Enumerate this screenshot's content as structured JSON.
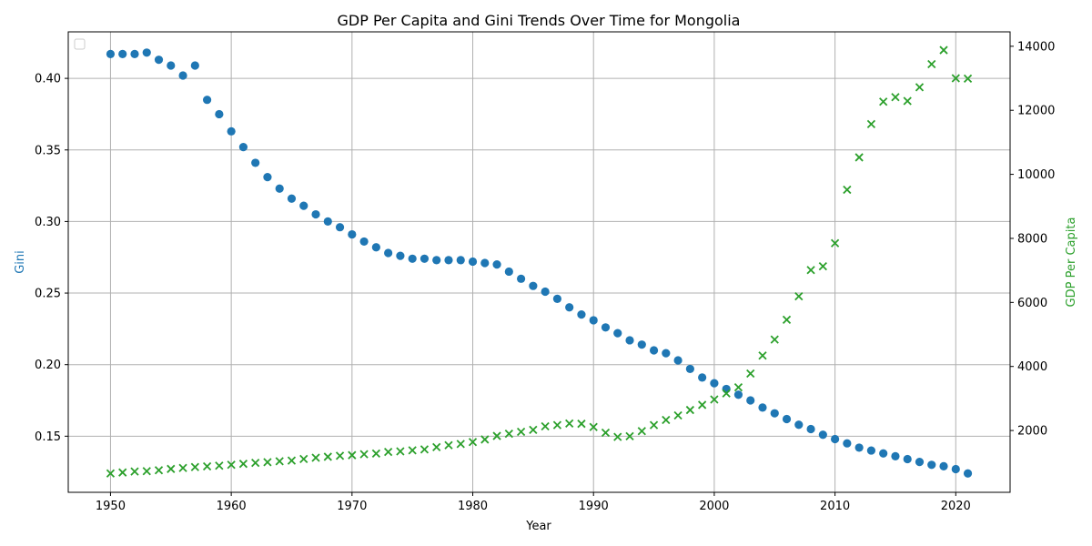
{
  "chart_data": {
    "type": "scatter",
    "title": "GDP Per Capita and Gini Trends Over Time for Mongolia",
    "xlabel": "Year",
    "ylabel_left": "Gini",
    "ylabel_right": "GDP Per Capita",
    "xlim": [
      1946.5,
      2024.5
    ],
    "ylim_left": [
      0.1108,
      0.4325
    ],
    "ylim_right": [
      70,
      14450
    ],
    "x_ticks": [
      1950,
      1960,
      1970,
      1980,
      1990,
      2000,
      2010,
      2020
    ],
    "y_left_ticks": [
      0.15,
      0.2,
      0.25,
      0.3,
      0.35,
      0.4
    ],
    "y_left_tick_labels": [
      "0.15",
      "0.20",
      "0.25",
      "0.30",
      "0.35",
      "0.40"
    ],
    "y_right_ticks": [
      2000,
      4000,
      6000,
      8000,
      10000,
      12000,
      14000
    ],
    "y_right_tick_labels": [
      "2000",
      "4000",
      "6000",
      "8000",
      "10000",
      "12000",
      "14000"
    ],
    "grid": true,
    "legend": "top-left (empty)",
    "colors": {
      "gini": "#1f77b4",
      "gdp": "#2ca02c"
    },
    "x": [
      1950,
      1951,
      1952,
      1953,
      1954,
      1955,
      1956,
      1957,
      1958,
      1959,
      1960,
      1961,
      1962,
      1963,
      1964,
      1965,
      1966,
      1967,
      1968,
      1969,
      1970,
      1971,
      1972,
      1973,
      1974,
      1975,
      1976,
      1977,
      1978,
      1979,
      1980,
      1981,
      1982,
      1983,
      1984,
      1985,
      1986,
      1987,
      1988,
      1989,
      1990,
      1991,
      1992,
      1993,
      1994,
      1995,
      1996,
      1997,
      1998,
      1999,
      2000,
      2001,
      2002,
      2003,
      2004,
      2005,
      2006,
      2007,
      2008,
      2009,
      2010,
      2011,
      2012,
      2013,
      2014,
      2015,
      2016,
      2017,
      2018,
      2019,
      2020,
      2021
    ],
    "series": [
      {
        "axis": "left",
        "marker": "circle",
        "values": [
          0.417,
          0.417,
          0.417,
          0.418,
          0.413,
          0.409,
          0.402,
          0.409,
          0.385,
          0.375,
          0.363,
          0.352,
          0.341,
          0.331,
          0.323,
          0.316,
          0.311,
          0.305,
          0.3,
          0.296,
          0.291,
          0.286,
          0.282,
          0.278,
          0.276,
          0.274,
          0.274,
          0.273,
          0.273,
          0.273,
          0.272,
          0.271,
          0.27,
          0.265,
          0.26,
          0.255,
          0.251,
          0.246,
          0.24,
          0.235,
          0.231,
          0.226,
          0.222,
          0.217,
          0.214,
          0.21,
          0.208,
          0.203,
          0.197,
          0.191,
          0.187,
          0.183,
          0.179,
          0.175,
          0.17,
          0.166,
          0.162,
          0.158,
          0.155,
          0.151,
          0.148,
          0.145,
          0.142,
          0.14,
          0.138,
          0.136,
          0.134,
          0.132,
          0.13,
          0.129,
          0.127,
          0.124
        ]
      },
      {
        "axis": "right",
        "marker": "x",
        "values": [
          660,
          690,
          720,
          730,
          760,
          800,
          830,
          860,
          880,
          900,
          930,
          960,
          990,
          1010,
          1040,
          1060,
          1110,
          1150,
          1180,
          1210,
          1230,
          1260,
          1280,
          1330,
          1350,
          1380,
          1410,
          1480,
          1540,
          1580,
          1640,
          1720,
          1830,
          1900,
          1960,
          2020,
          2130,
          2170,
          2220,
          2210,
          2110,
          1930,
          1800,
          1820,
          1980,
          2170,
          2330,
          2470,
          2640,
          2800,
          2970,
          3160,
          3350,
          3780,
          4340,
          4840,
          5460,
          6190,
          7010,
          7130,
          7850,
          9520,
          10530,
          11570,
          12270,
          12410,
          12290,
          12720,
          13440,
          13880,
          13000,
          12990
        ]
      }
    ]
  }
}
